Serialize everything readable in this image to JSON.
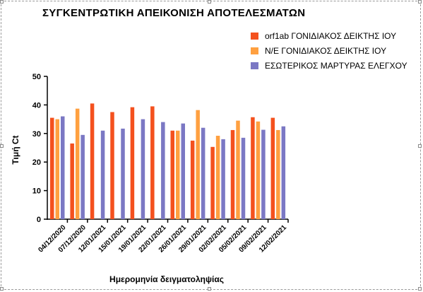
{
  "chart_data": {
    "type": "bar",
    "title": "ΣΥΓΚΕΝΤΡΩΤΙΚΗ ΑΠΕΙΚΟΝΙΣΗ ΑΠΟΤΕΛΕΣΜΑΤΩΝ",
    "xlabel": "Ημερομηνία δειγματοληψίας",
    "ylabel": "Τιμή Ct",
    "ylim": [
      0,
      50
    ],
    "yticks": [
      0,
      10,
      20,
      30,
      40,
      50
    ],
    "legend_position": "top-right",
    "grid": false,
    "categories": [
      "04/12/2020",
      "07/12/2020",
      "12/01/2021",
      "15/01/2021",
      "19/01/2021",
      "22/01/2021",
      "26/01/2021",
      "29/01/2021",
      "02/02/2021",
      "05/02/2021",
      "09/02/2021",
      "12/02/2021"
    ],
    "series": [
      {
        "name": "orf1ab ΓΟΝΙΔΙΑΚΟΣ ΔΕΙΚΤΗΣ ΙΟΥ",
        "color": "#F4511E",
        "values": [
          35.5,
          26.5,
          40.5,
          37.5,
          39.2,
          39.5,
          31,
          27.5,
          25.3,
          31.2,
          35.7,
          35.5
        ]
      },
      {
        "name": "Ν/Ε ΓΟΝΙΔΙΑΚΟΣ ΔΕΙΚΤΗΣ ΙΟΥ",
        "color": "#FFA040",
        "values": [
          35,
          38.7,
          null,
          null,
          null,
          null,
          31,
          38.2,
          29.2,
          34.5,
          34.2,
          31.2
        ]
      },
      {
        "name": "ΕΣΩΤΕΡΙΚΟΣ ΜΑΡΤΥΡΑΣ ΕΛΕΓΧΟΥ",
        "color": "#7B78C4",
        "values": [
          36,
          29.5,
          31,
          31.7,
          35,
          34,
          33.5,
          32,
          28,
          28.5,
          31.3,
          32.5
        ]
      }
    ]
  }
}
